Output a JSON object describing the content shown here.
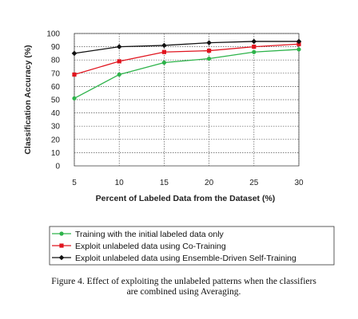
{
  "chart_data": {
    "type": "line",
    "title": "",
    "xlabel": "Percent of Labeled Data from the Dataset (%)",
    "ylabel": "Classification Accuracy (%)",
    "x": [
      5,
      10,
      15,
      20,
      25,
      30
    ],
    "x_ticks": [
      "5",
      "10",
      "15",
      "20",
      "25",
      "30"
    ],
    "ylim": [
      0,
      100
    ],
    "y_ticks": [
      "0",
      "10",
      "20",
      "30",
      "40",
      "50",
      "60",
      "70",
      "80",
      "90",
      "100"
    ],
    "grid": true,
    "legend_position": "bottom",
    "series": [
      {
        "name": "Training with the initial labeled data only",
        "color": "#2db34a",
        "marker": "circle",
        "values": [
          51,
          69,
          78,
          81,
          86,
          88
        ]
      },
      {
        "name": "Exploit unlabeled data using Co-Training",
        "color": "#e0141e",
        "marker": "square",
        "values": [
          69,
          79,
          86,
          87,
          90,
          92
        ]
      },
      {
        "name": "Exploit unlabeled data using Ensemble-Driven Self-Training",
        "color": "#111111",
        "marker": "diamond",
        "values": [
          85,
          90,
          91,
          93,
          94,
          94
        ]
      }
    ]
  },
  "caption": {
    "line1": "Figure 4.   Effect of exploiting the unlabeled patterns when the classifiers",
    "line2": "are combined using Averaging."
  }
}
